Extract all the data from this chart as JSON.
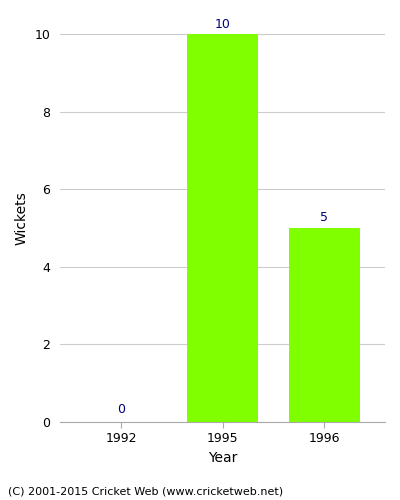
{
  "years": [
    "1992",
    "1995",
    "1996"
  ],
  "values": [
    0,
    10,
    5
  ],
  "bar_color": "#7FFF00",
  "bar_width": 0.7,
  "ylabel": "Wickets",
  "xlabel": "Year",
  "ylim": [
    0,
    10.5
  ],
  "yticks": [
    0,
    2,
    4,
    6,
    8,
    10
  ],
  "label_color": "#000080",
  "label_fontsize": 9,
  "axis_fontsize": 10,
  "tick_fontsize": 9,
  "copyright_text": "(C) 2001-2015 Cricket Web (www.cricketweb.net)",
  "copyright_fontsize": 8,
  "background_color": "#ffffff",
  "grid_color": "#cccccc"
}
